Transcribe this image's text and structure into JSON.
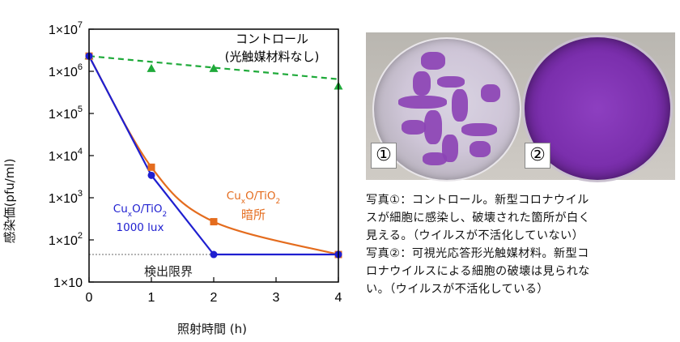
{
  "chart_data": {
    "type": "line",
    "y_scale": "log",
    "ylabel": "感染価(pfu/ml)",
    "xlabel": "照射時間 (h)",
    "xlim": [
      0,
      4
    ],
    "ylim": [
      10,
      10000000
    ],
    "x_ticks": [
      {
        "value": 0,
        "label": "0"
      },
      {
        "value": 1,
        "label": "1"
      },
      {
        "value": 2,
        "label": "2"
      },
      {
        "value": 3,
        "label": "3"
      },
      {
        "value": 4,
        "label": "4"
      }
    ],
    "y_ticks": [
      {
        "value": 10,
        "base": "1×10",
        "exp": ""
      },
      {
        "value": 100,
        "base": "1×10",
        "exp": "2"
      },
      {
        "value": 1000,
        "base": "1×10",
        "exp": "3"
      },
      {
        "value": 10000,
        "base": "1×10",
        "exp": "4"
      },
      {
        "value": 100000,
        "base": "1×10",
        "exp": "5"
      },
      {
        "value": 1000000,
        "base": "1×10",
        "exp": "6"
      },
      {
        "value": 10000000,
        "base": "1×10",
        "exp": "7"
      }
    ],
    "series": [
      {
        "name": "コントロール（光触媒材料なし）",
        "color": "#1faa3a",
        "marker": "triangle",
        "dashed": true,
        "points": [
          [
            0,
            2300000
          ],
          [
            1,
            1150000
          ],
          [
            2,
            1150000
          ],
          [
            4,
            440000
          ]
        ],
        "fit": [
          [
            0,
            2300000
          ],
          [
            4,
            650000
          ]
        ]
      },
      {
        "name": "CuxO/TiO2 暗所",
        "color": "#e46c1e",
        "marker": "square",
        "dashed": false,
        "points": [
          [
            0,
            2300000
          ],
          [
            1,
            5300
          ],
          [
            2,
            270
          ],
          [
            4,
            45
          ]
        ]
      },
      {
        "name": "CuxO/TiO2 1000 lux",
        "color": "#1f1fd0",
        "marker": "circle",
        "dashed": false,
        "points": [
          [
            0,
            2300000
          ],
          [
            1,
            3400
          ],
          [
            2,
            45
          ],
          [
            4,
            45
          ]
        ]
      }
    ],
    "detection_limit": {
      "value": 45,
      "label": "検出限界"
    },
    "annotations": {
      "control": {
        "line1": "コントロール",
        "line2": "(光触媒材料なし)"
      },
      "dark": {
        "line1_main": "Cu",
        "line1_sub1": "x",
        "line1_mid": "O/TiO",
        "line1_sub2": "2",
        "line2": "暗所"
      },
      "light": {
        "line1_main": "Cu",
        "line1_sub1": "x",
        "line1_mid": "O/TiO",
        "line1_sub2": "2",
        "line2": "1000 lux"
      }
    }
  },
  "photo": {
    "label1": "①",
    "label2": "②"
  },
  "caption": {
    "lines": [
      "写真①：コントロール。新型コロナウイル",
      "スが細胞に感染し、破壊された箇所が白く",
      "見える。（ウイルスが不活化していない）",
      "写真②：可視光応答形光触媒材料。新型コ",
      "ロナウイルスによる細胞の破壊は見られな",
      "い。（ウイルスが不活化している）"
    ]
  },
  "colors": {
    "control": "#1faa3a",
    "dark": "#e46c1e",
    "light": "#1f1fd0",
    "dish_purple": "#7b2fad"
  }
}
